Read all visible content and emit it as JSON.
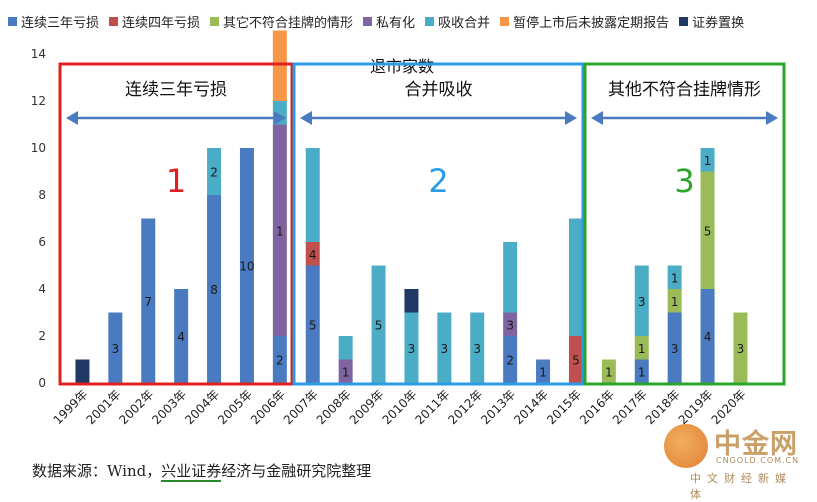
{
  "colors": {
    "连续三年亏损": "#4a7ac0",
    "连续四年亏损": "#c0504d",
    "其它不符合挂牌的情形": "#9bbb59",
    "私有化": "#8064a2",
    "吸收合并": "#4bacc6",
    "暂停上市后未披露定期报告": "#f79646",
    "证券置换": "#1f3864"
  },
  "chart_data": {
    "type": "bar",
    "stacked": true,
    "title": "退市家数",
    "categories": [
      "1999年",
      "2001年",
      "2002年",
      "2003年",
      "2004年",
      "2005年",
      "2006年",
      "2007年",
      "2008年",
      "2009年",
      "2010年",
      "2011年",
      "2012年",
      "2013年",
      "2014年",
      "2015年",
      "2016年",
      "2017年",
      "2018年",
      "2019年",
      "2020年"
    ],
    "ylim": [
      0,
      14
    ],
    "yticks": [
      0,
      2,
      4,
      6,
      8,
      10,
      12,
      14
    ],
    "legend_position": "top",
    "series": [
      {
        "name": "连续三年亏损",
        "values": [
          0,
          3,
          7,
          4,
          8,
          10,
          2,
          5,
          0,
          0,
          0,
          0,
          0,
          2,
          1,
          0,
          0,
          1,
          3,
          4,
          0
        ]
      },
      {
        "name": "连续四年亏损",
        "values": [
          0,
          0,
          0,
          0,
          0,
          0,
          0,
          1,
          0,
          0,
          0,
          0,
          0,
          0,
          0,
          2,
          0,
          0,
          0,
          0,
          0
        ]
      },
      {
        "name": "其它不符合挂牌的情形",
        "values": [
          0,
          0,
          0,
          0,
          0,
          0,
          0,
          0,
          0,
          0,
          0,
          0,
          0,
          0,
          0,
          0,
          1,
          1,
          1,
          5,
          3
        ]
      },
      {
        "name": "私有化",
        "values": [
          0,
          0,
          0,
          0,
          0,
          0,
          9,
          0,
          1,
          0,
          0,
          0,
          0,
          1,
          0,
          0,
          0,
          0,
          0,
          0,
          0
        ]
      },
      {
        "name": "吸收合并",
        "values": [
          0,
          0,
          0,
          0,
          2,
          0,
          1,
          4,
          1,
          5,
          3,
          3,
          3,
          3,
          0,
          5,
          0,
          3,
          1,
          1,
          0
        ]
      },
      {
        "name": "暂停上市后未披露定期报告",
        "values": [
          0,
          0,
          0,
          0,
          0,
          0,
          3,
          0,
          0,
          0,
          0,
          0,
          0,
          0,
          0,
          0,
          0,
          0,
          0,
          0,
          0
        ]
      },
      {
        "name": "证券置换",
        "values": [
          1,
          0,
          0,
          0,
          0,
          0,
          0,
          0,
          0,
          0,
          1,
          0,
          0,
          0,
          0,
          0,
          0,
          0,
          0,
          0,
          0
        ]
      }
    ],
    "data_labels": [
      {
        "category": "2001年",
        "text": "3"
      },
      {
        "category": "2002年",
        "text": "7"
      },
      {
        "category": "2003年",
        "text": "4"
      },
      {
        "category": "2004年",
        "text": "8"
      },
      {
        "category": "2004年",
        "text": "2"
      },
      {
        "category": "2005年",
        "text": "10"
      },
      {
        "category": "2006年",
        "text": "2"
      },
      {
        "category": "2006年",
        "text": "1"
      },
      {
        "category": "2007年",
        "text": "5"
      },
      {
        "category": "2007年",
        "text": "4"
      },
      {
        "category": "2008年",
        "text": "1"
      },
      {
        "category": "2009年",
        "text": "5"
      },
      {
        "category": "2010年",
        "text": "3"
      },
      {
        "category": "2011年",
        "text": "3"
      },
      {
        "category": "2012年",
        "text": "3"
      },
      {
        "category": "2013年",
        "text": "2"
      },
      {
        "category": "2013年",
        "text": "3"
      },
      {
        "category": "2014年",
        "text": "1"
      },
      {
        "category": "2015年",
        "text": "5"
      },
      {
        "category": "2016年",
        "text": "1"
      },
      {
        "category": "2017年",
        "text": "1"
      },
      {
        "category": "2017年",
        "text": "1"
      },
      {
        "category": "2017年",
        "text": "3"
      },
      {
        "category": "2018年",
        "text": "3"
      },
      {
        "category": "2018年",
        "text": "1"
      },
      {
        "category": "2018年",
        "text": "1"
      },
      {
        "category": "2019年",
        "text": "4"
      },
      {
        "category": "2019年",
        "text": "5"
      },
      {
        "category": "2019年",
        "text": "1"
      },
      {
        "category": "2020年",
        "text": "3"
      }
    ],
    "annotations": [
      {
        "label": "连续三年亏损",
        "number": "1",
        "color": "#e02020"
      },
      {
        "label": "合并吸收",
        "number": "2",
        "color": "#2b9be6"
      },
      {
        "label": "其他不符合挂牌情形",
        "number": "3",
        "color": "#2aa52a"
      }
    ]
  },
  "source": {
    "prefix": "数据来源：Wind，",
    "highlight": "兴业证券",
    "suffix": "经济与金融研究院整理"
  },
  "watermark": {
    "logo_text": "中金网",
    "url": "CNGOLD.COM.CN",
    "subtitle": "中文财经新媒体"
  }
}
